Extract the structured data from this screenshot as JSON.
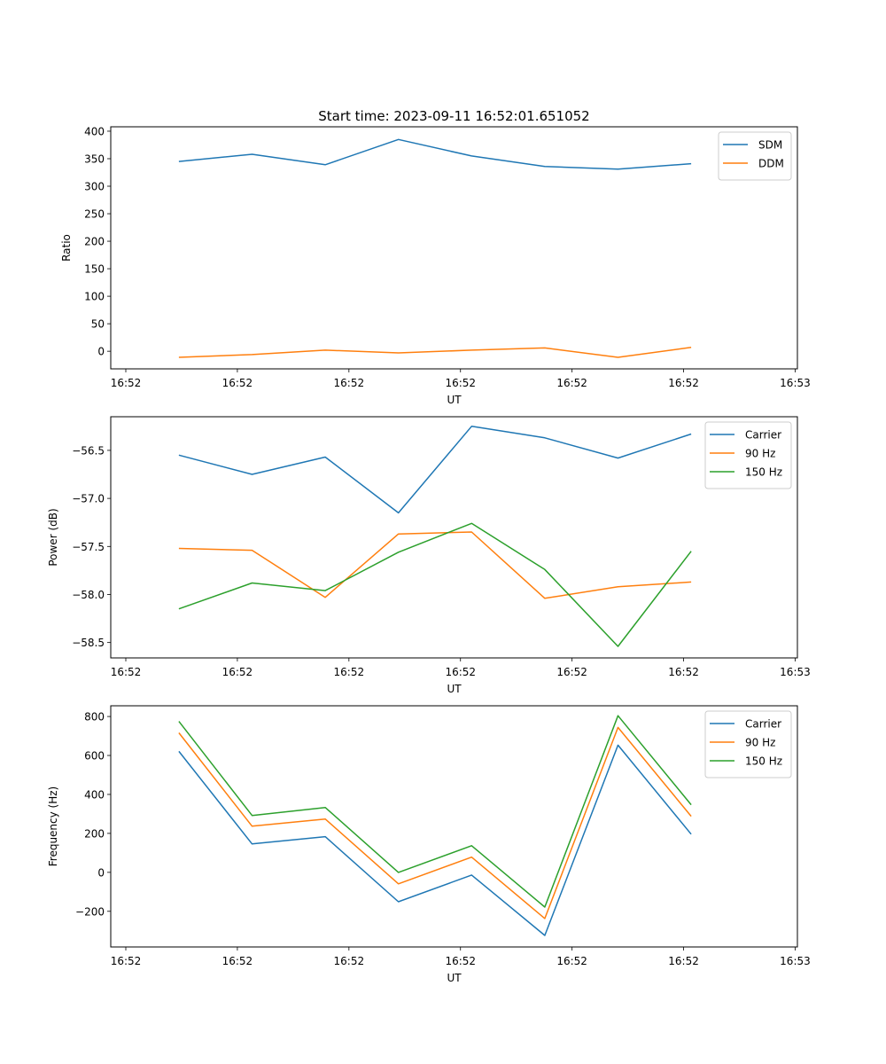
{
  "figure_title": "Start time: 2023-09-11 16:52:01.651052",
  "chart_data": [
    {
      "type": "line",
      "title": "Start time: 2023-09-11 16:52:01.651052",
      "xlabel": "UT",
      "ylabel": "Ratio",
      "x_seconds": [
        4.76,
        11.32,
        17.88,
        24.44,
        31.0,
        37.56,
        44.12,
        50.68
      ],
      "xlim": [
        -1.35,
        60.2
      ],
      "xticks": [
        0,
        10,
        20,
        30,
        40,
        50,
        60
      ],
      "xtick_labels": [
        "16:52",
        "16:52",
        "16:52",
        "16:52",
        "16:52",
        "16:52",
        "16:53"
      ],
      "ylim": [
        -32,
        408
      ],
      "yticks": [
        0,
        50,
        100,
        150,
        200,
        250,
        300,
        350,
        400
      ],
      "ytick_labels": [
        "0",
        "50",
        "100",
        "150",
        "200",
        "250",
        "300",
        "350",
        "400"
      ],
      "legend": "top-right",
      "grid": false,
      "series": [
        {
          "name": "SDM",
          "color": "#1f77b4",
          "values": [
            345,
            358,
            339,
            385,
            355,
            336,
            331,
            341
          ]
        },
        {
          "name": "DDM",
          "color": "#ff7f0e",
          "values": [
            -11,
            -6,
            2,
            -3,
            2,
            6,
            -11,
            7
          ]
        }
      ]
    },
    {
      "type": "line",
      "title": "",
      "xlabel": "UT",
      "ylabel": "Power (dB)",
      "x_seconds": [
        4.76,
        11.32,
        17.88,
        24.44,
        31.0,
        37.56,
        44.12,
        50.68
      ],
      "xlim": [
        -1.35,
        60.2
      ],
      "xticks": [
        0,
        10,
        20,
        30,
        40,
        50,
        60
      ],
      "xtick_labels": [
        "16:52",
        "16:52",
        "16:52",
        "16:52",
        "16:52",
        "16:52",
        "16:53"
      ],
      "ylim": [
        -58.66,
        -56.15
      ],
      "yticks": [
        -56.5,
        -57.0,
        -57.5,
        -58.0,
        -58.5
      ],
      "ytick_labels": [
        "−56.5",
        "−57.0",
        "−57.5",
        "−58.0",
        "−58.5"
      ],
      "legend": "top-right",
      "grid": false,
      "series": [
        {
          "name": "Carrier",
          "color": "#1f77b4",
          "values": [
            -56.55,
            -56.75,
            -56.57,
            -57.15,
            -56.25,
            -56.37,
            -56.58,
            -56.33
          ]
        },
        {
          "name": "90 Hz",
          "color": "#ff7f0e",
          "values": [
            -57.52,
            -57.54,
            -58.03,
            -57.37,
            -57.35,
            -58.04,
            -57.92,
            -57.87
          ]
        },
        {
          "name": "150 Hz",
          "color": "#2ca02c",
          "values": [
            -58.15,
            -57.88,
            -57.96,
            -57.56,
            -57.26,
            -57.74,
            -58.54,
            -57.55
          ]
        }
      ]
    },
    {
      "type": "line",
      "title": "",
      "xlabel": "UT",
      "ylabel": "Frequency (Hz)",
      "x_seconds": [
        4.76,
        11.32,
        17.88,
        24.44,
        31.0,
        37.56,
        44.12,
        50.68
      ],
      "xlim": [
        -1.35,
        60.2
      ],
      "xticks": [
        0,
        10,
        20,
        30,
        40,
        50,
        60
      ],
      "xtick_labels": [
        "16:52",
        "16:52",
        "16:52",
        "16:52",
        "16:52",
        "16:52",
        "16:53"
      ],
      "ylim": [
        -383,
        855
      ],
      "yticks": [
        -200,
        0,
        200,
        400,
        600,
        800
      ],
      "ytick_labels": [
        "−200",
        "0",
        "200",
        "400",
        "600",
        "800"
      ],
      "legend": "top-right",
      "grid": false,
      "series": [
        {
          "name": "Carrier",
          "color": "#1f77b4",
          "values": [
            621,
            146,
            183,
            -151,
            -14,
            -324,
            653,
            196
          ]
        },
        {
          "name": "90 Hz",
          "color": "#ff7f0e",
          "values": [
            716,
            237,
            274,
            -59,
            78,
            -237,
            744,
            288
          ]
        },
        {
          "name": "150 Hz",
          "color": "#2ca02c",
          "values": [
            775,
            292,
            333,
            0,
            137,
            -178,
            804,
            347
          ]
        }
      ]
    }
  ]
}
